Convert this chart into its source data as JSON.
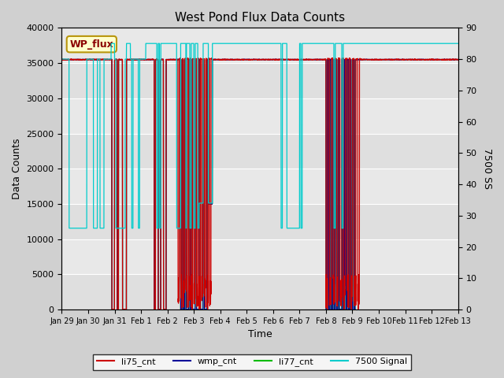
{
  "title": "West Pond Flux Data Counts",
  "xlabel": "Time",
  "ylabel_left": "Data Counts",
  "ylabel_right": "7500 SS",
  "xlim": [
    0,
    15
  ],
  "ylim_left": [
    0,
    40000
  ],
  "ylim_right": [
    0,
    90
  ],
  "xtick_labels": [
    "Jan 29",
    "Jan 30",
    "Jan 31",
    "Feb 1",
    "Feb 2",
    "Feb 3",
    "Feb 4",
    "Feb 5",
    "Feb 6",
    "Feb 7",
    "Feb 8",
    "Feb 9",
    "Feb 10",
    "Feb 11",
    "Feb 12",
    "Feb 13"
  ],
  "ytick_left": [
    0,
    5000,
    10000,
    15000,
    20000,
    25000,
    30000,
    35000,
    40000
  ],
  "ytick_right": [
    0,
    10,
    20,
    30,
    40,
    50,
    60,
    70,
    80,
    90
  ],
  "fig_bg": "#d0d0d0",
  "plot_bg": "#e8e8e8",
  "grid_color": "#ffffff",
  "legend_label": "WP_flux",
  "legend_bg": "#ffffcc",
  "legend_border": "#b8960c",
  "li75_color": "#cc0000",
  "wmp_color": "#000099",
  "li77_color": "#00bb00",
  "signal_color": "#00cccc",
  "li77_base": 35500,
  "wmp_base": 35600,
  "li75_base": 35600
}
